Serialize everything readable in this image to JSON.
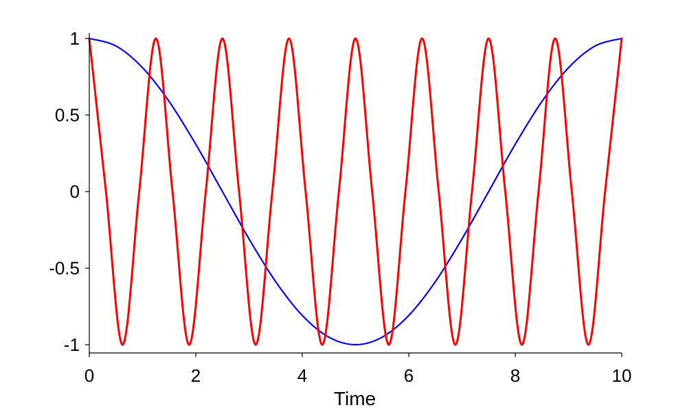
{
  "chart_data": {
    "type": "line",
    "xlabel": "Time",
    "ylabel": "",
    "xlim": [
      0,
      10
    ],
    "ylim": [
      -1,
      1
    ],
    "x_ticks": [
      0,
      2,
      4,
      6,
      8,
      10
    ],
    "y_ticks": [
      -1,
      -0.5,
      0,
      0.5,
      1
    ],
    "grid": false,
    "legend": "none",
    "series": [
      {
        "color": "#0000ff",
        "x": [
          0,
          0.5,
          1,
          1.5,
          2,
          2.5,
          3,
          3.5,
          4,
          4.5,
          5,
          5.5,
          6,
          6.5,
          7,
          7.5,
          8,
          8.5,
          9,
          9.5,
          10
        ],
        "y": [
          1,
          0.951,
          0.809,
          0.588,
          0.309,
          0,
          -0.309,
          -0.588,
          -0.809,
          -0.951,
          -1,
          -0.951,
          -0.809,
          -0.588,
          -0.309,
          0,
          0.309,
          0.588,
          0.809,
          0.951,
          1
        ]
      },
      {
        "color": "#ff0000",
        "x": [
          0,
          0.3125,
          0.625,
          0.9375,
          1.25,
          1.5625,
          1.875,
          2.1875,
          2.5,
          2.8125,
          3.125,
          3.4375,
          3.75,
          4.0625,
          4.375,
          4.6875,
          5,
          5.3125,
          5.625,
          5.9375,
          6.25,
          6.5625,
          6.875,
          7.1875,
          7.5,
          7.8125,
          8.125,
          8.4375,
          8.75,
          9.0625,
          9.375,
          9.6875,
          10
        ],
        "y": [
          1,
          0,
          -1,
          0,
          1,
          0,
          -1,
          0,
          1,
          0,
          -1,
          0,
          1,
          0,
          -1,
          0,
          1,
          0,
          -1,
          0,
          1,
          0,
          -1,
          0,
          1,
          0,
          -1,
          0,
          1,
          0,
          -1,
          0,
          1
        ]
      }
    ]
  }
}
